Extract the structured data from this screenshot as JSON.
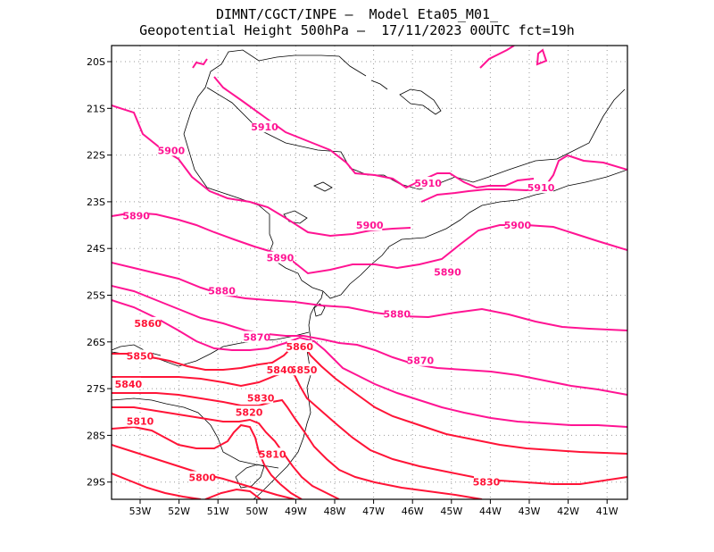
{
  "title_line1": "DIMNT/CGCT/INPE –  Model Eta05_M01_",
  "title_line2": "Geopotential Height 500hPa –  17/11/2023 00UTC fct=19h",
  "lat_labels": [
    "20S",
    "21S",
    "22S",
    "23S",
    "24S",
    "25S",
    "26S",
    "27S",
    "28S",
    "29S"
  ],
  "lon_labels": [
    "53W",
    "52W",
    "51W",
    "50W",
    "49W",
    "48W",
    "47W",
    "46W",
    "45W",
    "44W",
    "43W",
    "42W",
    "41W"
  ],
  "contour_labels": [
    {
      "text": "5910",
      "lon": -49.8,
      "lat": -21.4
    },
    {
      "text": "5910",
      "lon": -45.6,
      "lat": -22.6
    },
    {
      "text": "5910",
      "lon": -42.7,
      "lat": -22.7
    },
    {
      "text": "5900",
      "lon": -52.2,
      "lat": -21.9
    },
    {
      "text": "5900",
      "lon": -47.1,
      "lat": -23.5
    },
    {
      "text": "5900",
      "lon": -43.3,
      "lat": -23.5
    },
    {
      "text": "5890",
      "lon": -53.1,
      "lat": -23.3
    },
    {
      "text": "5890",
      "lon": -49.4,
      "lat": -24.2
    },
    {
      "text": "5890",
      "lon": -45.1,
      "lat": -24.5
    },
    {
      "text": "5880",
      "lon": -50.9,
      "lat": -24.9
    },
    {
      "text": "5880",
      "lon": -46.4,
      "lat": -25.4
    },
    {
      "text": "5870",
      "lon": -50.0,
      "lat": -25.9
    },
    {
      "text": "5870",
      "lon": -45.8,
      "lat": -26.4
    },
    {
      "text": "5860",
      "lon": -52.8,
      "lat": -25.6
    },
    {
      "text": "5860",
      "lon": -48.9,
      "lat": -26.1
    },
    {
      "text": "5850",
      "lon": -53.0,
      "lat": -26.3
    },
    {
      "text": "5850",
      "lon": -48.8,
      "lat": -26.6
    },
    {
      "text": "5840",
      "lon": -53.3,
      "lat": -26.9
    },
    {
      "text": "5840",
      "lon": -49.4,
      "lat": -26.6
    },
    {
      "text": "5830",
      "lon": -49.9,
      "lat": -27.2
    },
    {
      "text": "5830",
      "lon": -44.1,
      "lat": -29.0
    },
    {
      "text": "5820",
      "lon": -50.2,
      "lat": -27.5
    },
    {
      "text": "5810",
      "lon": -53.0,
      "lat": -27.7
    },
    {
      "text": "5810",
      "lon": -49.6,
      "lat": -28.4
    },
    {
      "text": "5800",
      "lon": -51.4,
      "lat": -28.9
    }
  ]
}
